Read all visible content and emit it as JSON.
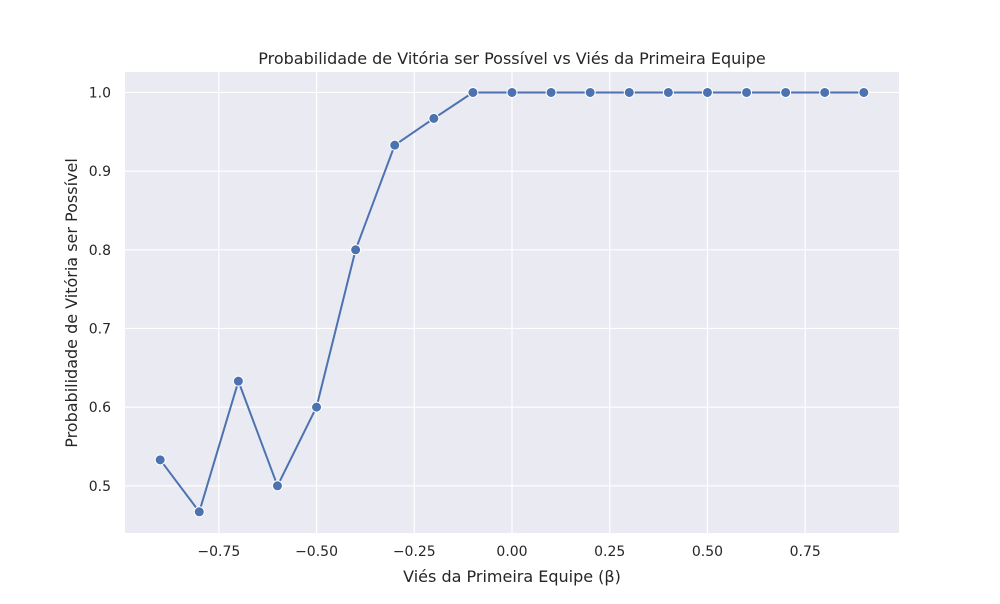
{
  "chart_data": {
    "type": "line",
    "title": "Probabilidade de Vitória ser Possível vs Viés da Primeira Equipe",
    "xlabel": "Viés da Primeira Equipe (β)",
    "ylabel": "Probabilidade de Vitória ser Possível",
    "xlim": [
      -0.99,
      0.99
    ],
    "ylim": [
      0.44,
      1.026
    ],
    "x_ticks": [
      -0.75,
      -0.5,
      -0.25,
      0.0,
      0.25,
      0.5,
      0.75
    ],
    "x_tick_labels": [
      "−0.75",
      "−0.50",
      "−0.25",
      "0.00",
      "0.25",
      "0.50",
      "0.75"
    ],
    "y_ticks": [
      0.5,
      0.6,
      0.7,
      0.8,
      0.9,
      1.0
    ],
    "y_tick_labels": [
      "0.5",
      "0.6",
      "0.7",
      "0.8",
      "0.9",
      "1.0"
    ],
    "grid": true,
    "series": [
      {
        "color": "#4c72b0",
        "marker": "circle",
        "x": [
          -0.9,
          -0.8,
          -0.7,
          -0.6,
          -0.5,
          -0.4,
          -0.3,
          -0.2,
          -0.1,
          0.0,
          0.1,
          0.2,
          0.3,
          0.4,
          0.5,
          0.6,
          0.7,
          0.8,
          0.9
        ],
        "y": [
          0.533,
          0.467,
          0.633,
          0.5,
          0.6,
          0.8,
          0.933,
          0.967,
          1.0,
          1.0,
          1.0,
          1.0,
          1.0,
          1.0,
          1.0,
          1.0,
          1.0,
          1.0,
          1.0
        ]
      }
    ],
    "colors": {
      "plot_background": "#eaeaf2",
      "grid": "#ffffff",
      "line": "#4c72b0"
    }
  }
}
